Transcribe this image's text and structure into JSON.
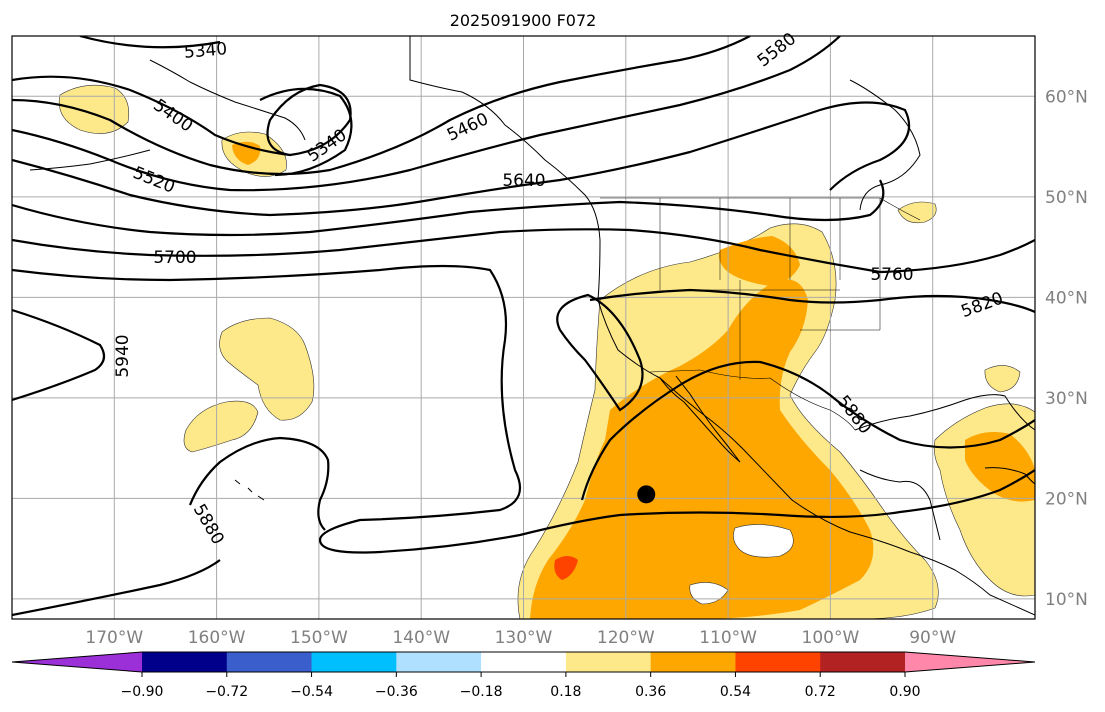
{
  "title": "2025091900 F072",
  "map": {
    "projection": "PlateCarree",
    "lon_range": [
      -180,
      -80
    ],
    "lat_range": [
      8,
      66
    ],
    "gridline_color": "#aaaaaa",
    "coastline_color": "#000000",
    "marker": {
      "lon": -118,
      "lat": 20.4,
      "color": "#000000"
    },
    "lon_labels": [
      "170°W",
      "160°W",
      "150°W",
      "140°W",
      "130°W",
      "120°W",
      "110°W",
      "100°W",
      "90°W"
    ],
    "lat_labels": [
      "10°N",
      "20°N",
      "30°N",
      "40°N",
      "50°N",
      "60°N"
    ],
    "axis_label_color": "#808080"
  },
  "contours": {
    "field": "geopotential height",
    "line_color": "#000000",
    "labels": [
      "5340",
      "5340",
      "5400",
      "5460",
      "5520",
      "5580",
      "5640",
      "5700",
      "5760",
      "5820",
      "5880",
      "5880",
      "5940"
    ]
  },
  "shading": {
    "colors": {
      "0.18_0.36": "#fde88a",
      "0.36_0.54": "#fda700",
      "0.54_0.72": "#fe4200"
    }
  },
  "colorbar": {
    "tick_labels": [
      "−0.90",
      "−0.72",
      "−0.54",
      "−0.36",
      "−0.18",
      "0.18",
      "0.36",
      "0.54",
      "0.72",
      "0.90"
    ],
    "min_extend_color": "#9b30d8",
    "max_extend_color": "#ff88aa",
    "segment_colors": [
      "#00008b",
      "#3a5fcd",
      "#00bfff",
      "#b0e0ff",
      "#ffffff",
      "#fde88a",
      "#fda700",
      "#fe4200",
      "#b22222"
    ]
  }
}
